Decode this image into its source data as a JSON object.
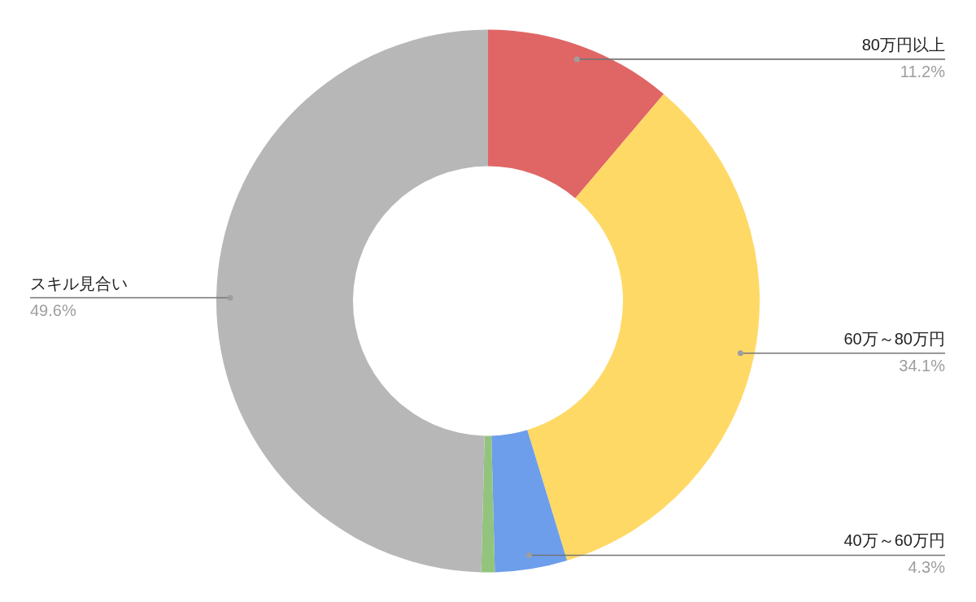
{
  "chart_data": {
    "type": "donut",
    "categories": [
      "80万円以上",
      "60万～80万円",
      "40万～60万円",
      null,
      "スキル見合い"
    ],
    "values": [
      11.2,
      34.1,
      4.3,
      0.8,
      49.6
    ],
    "colors": [
      "#e06666",
      "#ffd966",
      "#6d9eeb",
      "#93c47d",
      "#b7b7b7"
    ],
    "value_labels": [
      "11.2%",
      "34.1%",
      "4.3%",
      null,
      "49.6%"
    ]
  }
}
